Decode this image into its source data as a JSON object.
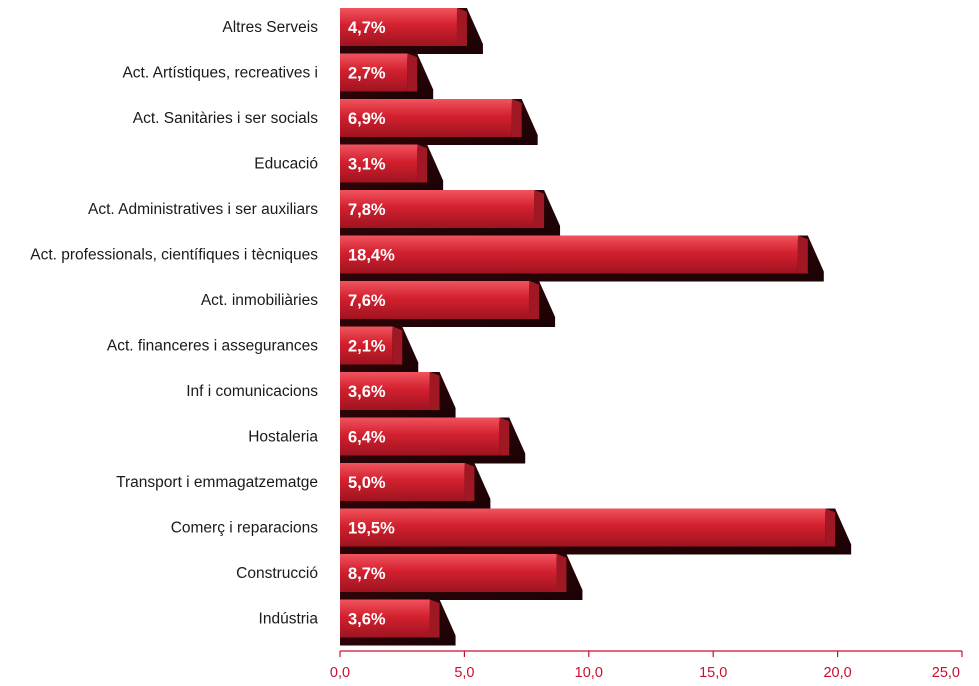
{
  "chart_data": {
    "type": "bar",
    "orientation": "horizontal",
    "categories": [
      "Altres Serveis",
      "Act. Artístiques, recreatives i",
      "Act. Sanitàries i ser socials",
      "Educació",
      "Act. Administratives i ser auxiliars",
      "Act. professionals, científiques i tècniques",
      "Act. inmobiliàries",
      "Act. financeres i assegurances",
      "Inf i comunicacions",
      "Hostaleria",
      "Transport i emmagatzematge",
      "Comerç i reparacions",
      "Construcció",
      "Indústria"
    ],
    "values": [
      4.7,
      2.7,
      6.9,
      3.1,
      7.8,
      18.4,
      7.6,
      2.1,
      3.6,
      6.4,
      5.0,
      19.5,
      8.7,
      3.6
    ],
    "value_labels": [
      "4,7%",
      "2,7%",
      "6,9%",
      "3,1%",
      "7,8%",
      "18,4%",
      "7,6%",
      "2,1%",
      "3,6%",
      "6,4%",
      "5,0%",
      "19,5%",
      "8,7%",
      "3,6%"
    ],
    "x_ticks": [
      "0,0",
      "5,0",
      "10,0",
      "15,0",
      "20,0",
      "25,0"
    ],
    "xlim": [
      0,
      25
    ],
    "colors": {
      "bar": "#d3202f",
      "bar_dark": "#8a1620",
      "shadow": "#2a0508",
      "axis": "#c8102e"
    },
    "title": "",
    "xlabel": "",
    "ylabel": ""
  }
}
